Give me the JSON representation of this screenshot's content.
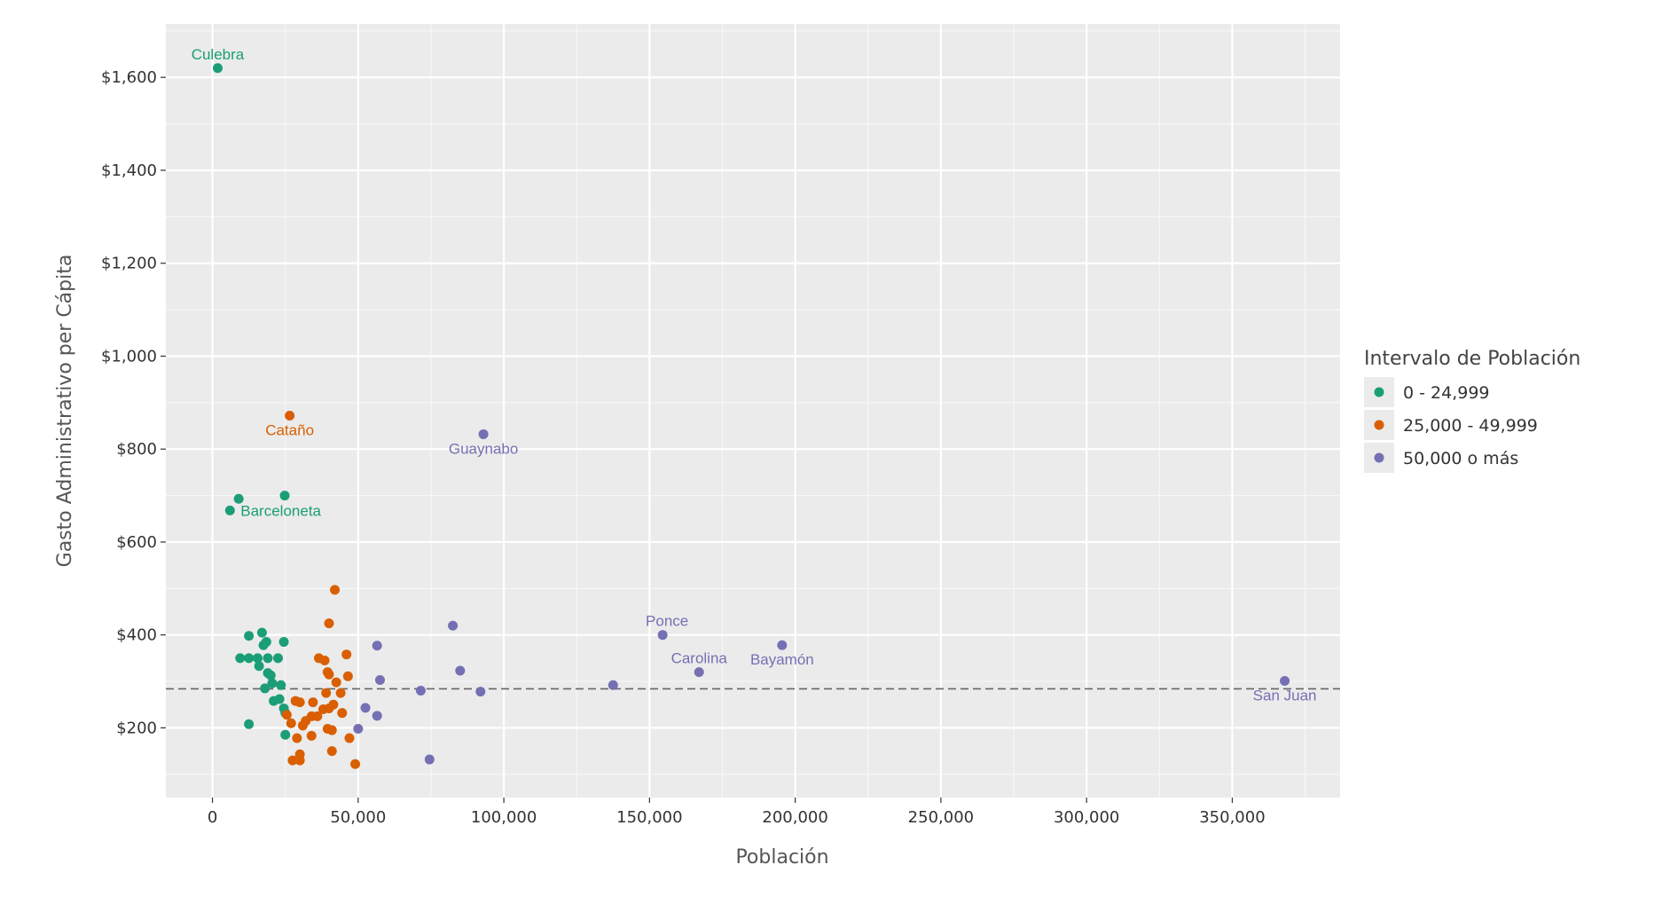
{
  "chart_data": {
    "type": "scatter",
    "xlabel": "Población",
    "ylabel": "Gasto Administrativo per Cápita",
    "xlim": [
      -16000,
      387000
    ],
    "ylim": [
      50,
      1715
    ],
    "x_ticks": [
      0,
      50000,
      100000,
      150000,
      200000,
      250000,
      300000,
      350000
    ],
    "x_tick_labels": [
      "0",
      "50,000",
      "100,000",
      "150,000",
      "200,000",
      "250,000",
      "300,000",
      "350,000"
    ],
    "y_ticks": [
      200,
      400,
      600,
      800,
      1000,
      1200,
      1400,
      1600
    ],
    "y_tick_labels": [
      "$200",
      "$400",
      "$600",
      "$800",
      "$1,000",
      "$1,200",
      "$1,400",
      "$1,600"
    ],
    "reference_line_y": 284,
    "grid": true,
    "legend_position": "right",
    "legend": {
      "title": "Intervalo de Población",
      "entries": [
        {
          "label": "0 - 24,999",
          "color": "#1b9e77"
        },
        {
          "label": "25,000 - 49,999",
          "color": "#d95f02"
        },
        {
          "label": "50,000 o más",
          "color": "#7570b3"
        }
      ]
    },
    "series": [
      {
        "name": "0 - 24,999",
        "color": "#1b9e77",
        "points": [
          [
            1800,
            1620
          ],
          [
            9000,
            693
          ],
          [
            24800,
            700
          ],
          [
            6000,
            668
          ],
          [
            17000,
            405
          ],
          [
            12500,
            398
          ],
          [
            18500,
            385
          ],
          [
            24500,
            385
          ],
          [
            17500,
            378
          ],
          [
            9500,
            350
          ],
          [
            12500,
            350
          ],
          [
            15500,
            350
          ],
          [
            19000,
            350
          ],
          [
            22500,
            350
          ],
          [
            16000,
            333
          ],
          [
            19000,
            318
          ],
          [
            20000,
            313
          ],
          [
            20500,
            296
          ],
          [
            23500,
            292
          ],
          [
            18000,
            285
          ],
          [
            23000,
            262
          ],
          [
            21000,
            258
          ],
          [
            24500,
            242
          ],
          [
            25000,
            232
          ],
          [
            12500,
            208
          ],
          [
            25000,
            185
          ]
        ]
      },
      {
        "name": "25,000 - 49,999",
        "color": "#d95f02",
        "points": [
          [
            26500,
            872
          ],
          [
            42000,
            497
          ],
          [
            40000,
            425
          ],
          [
            36500,
            350
          ],
          [
            38500,
            345
          ],
          [
            46000,
            358
          ],
          [
            39500,
            320
          ],
          [
            40000,
            315
          ],
          [
            46500,
            311
          ],
          [
            42500,
            298
          ],
          [
            39000,
            275
          ],
          [
            44000,
            275
          ],
          [
            28500,
            258
          ],
          [
            30000,
            255
          ],
          [
            34500,
            255
          ],
          [
            41500,
            250
          ],
          [
            38000,
            240
          ],
          [
            40000,
            242
          ],
          [
            44500,
            232
          ],
          [
            25500,
            228
          ],
          [
            34000,
            225
          ],
          [
            36000,
            225
          ],
          [
            32000,
            215
          ],
          [
            27000,
            210
          ],
          [
            31000,
            205
          ],
          [
            39500,
            198
          ],
          [
            41000,
            195
          ],
          [
            34000,
            183
          ],
          [
            47000,
            178
          ],
          [
            29000,
            178
          ],
          [
            30000,
            143
          ],
          [
            41000,
            150
          ],
          [
            27500,
            130
          ],
          [
            30000,
            130
          ],
          [
            49000,
            122
          ]
        ]
      },
      {
        "name": "50,000 o más",
        "color": "#7570b3",
        "points": [
          [
            93000,
            832
          ],
          [
            82500,
            420
          ],
          [
            56500,
            377
          ],
          [
            85000,
            323
          ],
          [
            57500,
            303
          ],
          [
            71500,
            280
          ],
          [
            92000,
            278
          ],
          [
            52500,
            243
          ],
          [
            56500,
            226
          ],
          [
            50000,
            198
          ],
          [
            74500,
            132
          ],
          [
            137500,
            292
          ],
          [
            154500,
            400
          ],
          [
            167000,
            320
          ],
          [
            195500,
            378
          ],
          [
            368000,
            301
          ]
        ]
      }
    ],
    "annotations": [
      {
        "text": "Culebra",
        "x": 1800,
        "y": 1620,
        "series": 0
      },
      {
        "text": "Barceloneta",
        "x": 6000,
        "y": 668,
        "series": 0
      },
      {
        "text": "Cataño",
        "x": 26500,
        "y": 872,
        "series": 1
      },
      {
        "text": "Guaynabo",
        "x": 93000,
        "y": 832,
        "series": 2
      },
      {
        "text": "Ponce",
        "x": 154500,
        "y": 400,
        "series": 2
      },
      {
        "text": "Carolina",
        "x": 167000,
        "y": 320,
        "series": 2
      },
      {
        "text": "Bayamón",
        "x": 195500,
        "y": 378,
        "series": 2
      },
      {
        "text": "San Juan",
        "x": 368000,
        "y": 301,
        "series": 2
      }
    ]
  }
}
